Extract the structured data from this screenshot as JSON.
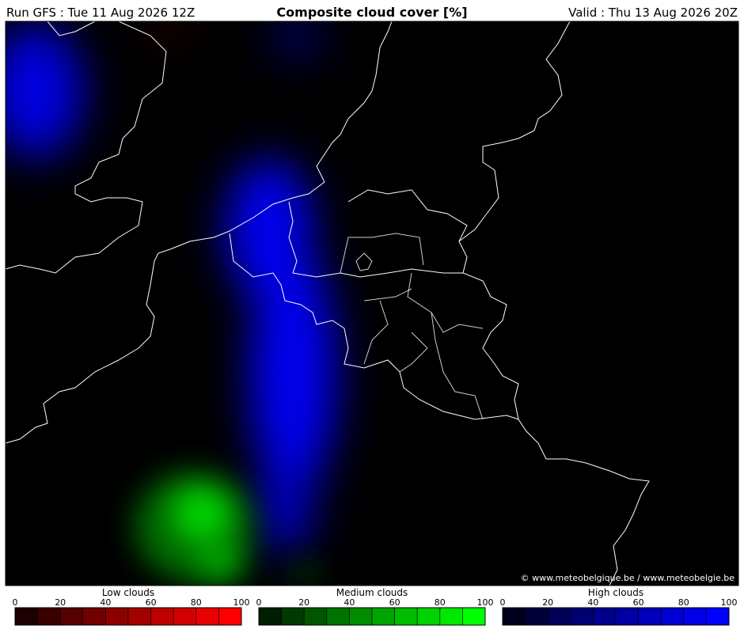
{
  "header": {
    "run": "Run GFS : Tue 11 Aug 2026 12Z",
    "title": "Composite cloud cover [%]",
    "valid": "Valid : Thu 13 Aug 2026 20Z"
  },
  "credit": "© www.meteobelgique.be / www.meteobelgie.be",
  "legends": [
    {
      "title": "Low clouds",
      "ticks": [
        0,
        20,
        40,
        60,
        80,
        100
      ],
      "colors": [
        "#1e0000",
        "#3a0000",
        "#560000",
        "#720000",
        "#8c0000",
        "#a40000",
        "#bc0000",
        "#d20000",
        "#e80000",
        "#ff0000"
      ]
    },
    {
      "title": "Medium clouds",
      "ticks": [
        0,
        20,
        40,
        60,
        80,
        100
      ],
      "colors": [
        "#001e00",
        "#003a00",
        "#005600",
        "#007200",
        "#008c00",
        "#00a400",
        "#00bc00",
        "#00d200",
        "#00e800",
        "#00ff00"
      ]
    },
    {
      "title": "High clouds",
      "ticks": [
        0,
        20,
        40,
        60,
        80,
        100
      ],
      "colors": [
        "#00001e",
        "#00003a",
        "#000056",
        "#000072",
        "#00008c",
        "#0000a4",
        "#0000bc",
        "#0000d2",
        "#0000e8",
        "#0000ff"
      ]
    }
  ]
}
